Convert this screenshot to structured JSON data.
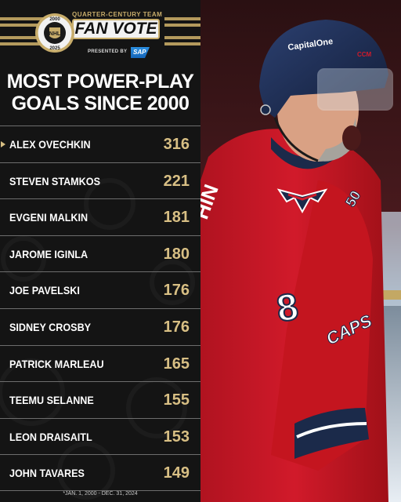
{
  "badge": {
    "top_tag": "QUARTER-CENTURY TEAM",
    "title": "FAN VOTE",
    "presented_by": "PRESENTED BY",
    "sponsor": "SAP",
    "logo_years_top": "2000",
    "logo_years_bottom": "2025"
  },
  "title": {
    "line1": "MOST POWER-PLAY",
    "line2": "GOALS SINCE 2000"
  },
  "leaders": [
    {
      "name": "ALEX OVECHKIN",
      "goals": "316"
    },
    {
      "name": "STEVEN STAMKOS",
      "goals": "221"
    },
    {
      "name": "EVGENI MALKIN",
      "goals": "181"
    },
    {
      "name": "JAROME IGINLA",
      "goals": "180"
    },
    {
      "name": "JOE PAVELSKI",
      "goals": "176"
    },
    {
      "name": "SIDNEY CROSBY",
      "goals": "176"
    },
    {
      "name": "PATRICK MARLEAU",
      "goals": "165"
    },
    {
      "name": "TEEMU SELANNE",
      "goals": "155"
    },
    {
      "name": "LEON DRAISAITL",
      "goals": "153"
    },
    {
      "name": "JOHN TAVARES",
      "goals": "149"
    }
  ],
  "footnote": "*JAN. 1, 2000 - DEC. 31, 2024",
  "photo": {
    "helmet_sponsor": "CapitalOne",
    "helmet_brand": "CCM",
    "jersey_number": "8",
    "jersey_name_fragment": "HIN",
    "anniversary_patch": "50",
    "crest_text": "CAPS"
  },
  "colors": {
    "panel": "#141414",
    "gold": "#d8bf84",
    "divider": "#6d6d6d",
    "jersey_red": "#d11a2a",
    "helmet_navy": "#1b2a4a"
  }
}
